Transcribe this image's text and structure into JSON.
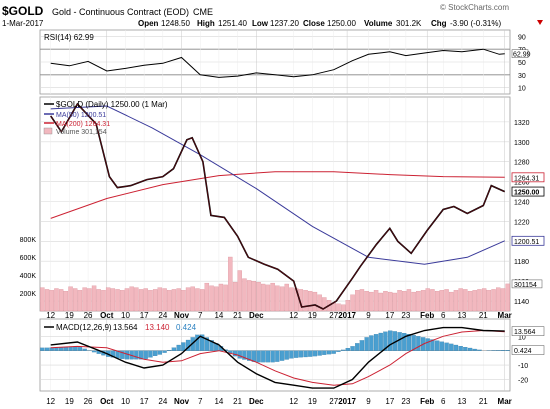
{
  "header": {
    "symbol": "$GOLD",
    "name": "Gold - Continuous Contract (EOD)",
    "exchange": "CME",
    "date": "1-Mar-2017",
    "open_label": "Open",
    "open": "1248.50",
    "high_label": "High",
    "high": "1251.40",
    "low_label": "Low",
    "low": "1237.20",
    "close_label": "Close",
    "close": "1250.00",
    "volume_label": "Volume",
    "volume": "301.2K",
    "chg_label": "Chg",
    "chg": "-3.90 (-0.31%)",
    "watermark": "© StockCharts.com"
  },
  "colors": {
    "price": "#000000",
    "ma50": "#3a3a9a",
    "ma200": "#cc2233",
    "volume_up": "#f2b8bf",
    "volume_down": "#f2b8bf",
    "macd_hist": "#4a9fd0",
    "macd_line": "#000000",
    "signal_line": "#cc2233",
    "grid": "#d8d8d8",
    "chg_neg": "#cc0000"
  },
  "chart_data": [
    {
      "type": "line",
      "panel": "rsi",
      "label": "RSI(14) 62.99",
      "current": 62.99,
      "ylim": [
        0,
        100
      ],
      "y_ticks": [
        10,
        30,
        50,
        70,
        90
      ],
      "levels": [
        30,
        70
      ],
      "x": [
        "2016-09-12",
        "2016-09-19",
        "2016-09-26",
        "2016-10-03",
        "2016-10-10",
        "2016-10-17",
        "2016-10-24",
        "2016-10-31",
        "2016-11-07",
        "2016-11-14",
        "2016-11-21",
        "2016-11-28",
        "2016-12-05",
        "2016-12-12",
        "2016-12-19",
        "2016-12-27",
        "2017-01-03",
        "2017-01-09",
        "2017-01-17",
        "2017-01-23",
        "2017-01-30",
        "2017-02-06",
        "2017-02-13",
        "2017-02-21",
        "2017-02-27",
        "2017-03-01"
      ],
      "values": [
        48,
        44,
        51,
        36,
        40,
        45,
        48,
        57,
        30,
        26,
        28,
        33,
        30,
        27,
        30,
        38,
        52,
        62,
        66,
        60,
        64,
        68,
        66,
        70,
        62,
        62.99
      ]
    },
    {
      "type": "line",
      "panel": "price",
      "title_label": "$GOLD (Daily) 1250.00 (1 Mar)",
      "ylim": [
        1130,
        1345
      ],
      "y_ticks": [
        1140,
        1160,
        1180,
        1200,
        1220,
        1240,
        1260,
        1280,
        1300,
        1320
      ],
      "x_tick_labels": [
        "12",
        "19",
        "26",
        "Oct",
        "10",
        "17",
        "24",
        "Nov",
        "7",
        "14",
        "21",
        "Dec",
        "12",
        "19",
        "27",
        "2017",
        "9",
        "17",
        "23",
        "Feb",
        "6",
        "13",
        "21",
        "Mar"
      ],
      "series": [
        {
          "name": "$GOLD (Daily) 1250.00 (1 Mar)",
          "x": [
            "2016-09-12",
            "2016-09-16",
            "2016-09-22",
            "2016-09-29",
            "2016-10-04",
            "2016-10-07",
            "2016-10-12",
            "2016-10-18",
            "2016-10-24",
            "2016-10-28",
            "2016-11-02",
            "2016-11-04",
            "2016-11-08",
            "2016-11-11",
            "2016-11-16",
            "2016-11-21",
            "2016-11-25",
            "2016-12-01",
            "2016-12-06",
            "2016-12-12",
            "2016-12-15",
            "2016-12-20",
            "2016-12-23",
            "2016-12-28",
            "2017-01-03",
            "2017-01-06",
            "2017-01-12",
            "2017-01-17",
            "2017-01-20",
            "2017-01-25",
            "2017-01-31",
            "2017-02-06",
            "2017-02-10",
            "2017-02-15",
            "2017-02-21",
            "2017-02-24",
            "2017-03-01"
          ],
          "values": [
            1326,
            1310,
            1338,
            1318,
            1265,
            1254,
            1256,
            1262,
            1265,
            1273,
            1302,
            1304,
            1280,
            1226,
            1224,
            1205,
            1184,
            1177,
            1172,
            1160,
            1134,
            1136,
            1132,
            1140,
            1163,
            1175,
            1197,
            1213,
            1200,
            1188,
            1211,
            1232,
            1235,
            1228,
            1236,
            1256,
            1250
          ]
        },
        {
          "name": "MA(50) 1200.51",
          "x": [
            "2016-09-12",
            "2016-10-03",
            "2016-10-20",
            "2016-11-07",
            "2016-11-28",
            "2016-12-19",
            "2017-01-09",
            "2017-01-30",
            "2017-02-15",
            "2017-03-01"
          ],
          "values": [
            1333,
            1336,
            1314,
            1287,
            1253,
            1215,
            1184,
            1177,
            1184,
            1200.51
          ]
        },
        {
          "name": "MA(200) 1264.31",
          "x": [
            "2016-09-12",
            "2016-10-03",
            "2016-10-24",
            "2016-11-14",
            "2016-12-05",
            "2016-12-27",
            "2017-01-17",
            "2017-02-06",
            "2017-03-01"
          ],
          "values": [
            1223,
            1243,
            1257,
            1266,
            1270,
            1270,
            1267,
            1265,
            1264.31
          ]
        }
      ],
      "price_labels": [
        "1264.31",
        "1250.00",
        "1200.51"
      ]
    },
    {
      "type": "bar",
      "panel": "volume",
      "label": "Volume 301,154",
      "current_label": "301154",
      "ylim": [
        0,
        1000000
      ],
      "y_ticks": [
        200000,
        400000,
        600000,
        800000
      ],
      "y_tick_labels": [
        "200K",
        "400K",
        "600K",
        "800K"
      ],
      "values": [
        260000,
        240000,
        230000,
        250000,
        240000,
        220000,
        270000,
        250000,
        230000,
        260000,
        250000,
        280000,
        240000,
        230000,
        260000,
        250000,
        240000,
        230000,
        250000,
        270000,
        260000,
        240000,
        250000,
        230000,
        240000,
        260000,
        250000,
        230000,
        240000,
        250000,
        230000,
        260000,
        270000,
        250000,
        240000,
        310000,
        280000,
        270000,
        300000,
        290000,
        600000,
        320000,
        450000,
        360000,
        340000,
        330000,
        320000,
        300000,
        290000,
        310000,
        280000,
        270000,
        300000,
        260000,
        250000,
        240000,
        230000,
        220000,
        210000,
        180000,
        150000,
        120000,
        90000,
        80000,
        70000,
        120000,
        180000,
        230000,
        240000,
        220000,
        210000,
        230000,
        200000,
        220000,
        210000,
        200000,
        230000,
        220000,
        240000,
        210000,
        220000,
        230000,
        250000,
        240000,
        220000,
        230000,
        240000,
        210000,
        230000,
        250000,
        240000,
        220000,
        230000,
        240000,
        250000,
        230000,
        240000,
        260000,
        250000,
        301154
      ]
    },
    {
      "type": "area",
      "panel": "macd",
      "label_name": "MACD(12,26,9)",
      "macd": "13.564",
      "signal": "13.140",
      "hist": "0.424",
      "ylim": [
        -28,
        22
      ],
      "y_ticks": [
        -20,
        -10,
        10
      ],
      "x": [
        "2016-09-12",
        "2016-09-22",
        "2016-10-03",
        "2016-10-10",
        "2016-10-17",
        "2016-10-24",
        "2016-10-31",
        "2016-11-07",
        "2016-11-14",
        "2016-11-21",
        "2016-11-28",
        "2016-12-05",
        "2016-12-12",
        "2016-12-19",
        "2016-12-27",
        "2017-01-03",
        "2017-01-09",
        "2017-01-17",
        "2017-01-23",
        "2017-01-30",
        "2017-02-06",
        "2017-02-13",
        "2017-02-21",
        "2017-03-01"
      ],
      "series": [
        {
          "values": [
            4,
            6,
            -2,
            -8,
            -12,
            -10,
            -2,
            10,
            4,
            -8,
            -16,
            -22,
            -24,
            -26,
            -26,
            -20,
            -8,
            4,
            10,
            14,
            16,
            16,
            14,
            13.564
          ]
        },
        {
          "values": [
            2,
            3,
            2,
            -2,
            -6,
            -8,
            -7,
            -2,
            0,
            -3,
            -8,
            -14,
            -19,
            -22,
            -24,
            -23,
            -18,
            -10,
            -2,
            5,
            10,
            13,
            14,
            13.14
          ]
        }
      ],
      "histogram": [
        2,
        3,
        -4,
        -6,
        -6,
        -2,
        5,
        12,
        4,
        -5,
        -8,
        -8,
        -5,
        -4,
        -2,
        3,
        10,
        14,
        12,
        9,
        6,
        3,
        0,
        0.424
      ]
    }
  ]
}
